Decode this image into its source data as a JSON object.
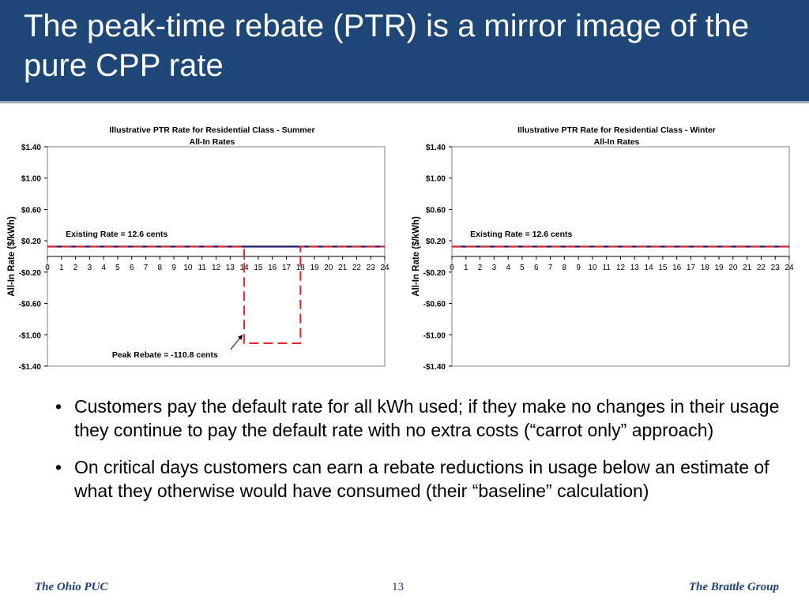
{
  "slide": {
    "title": "The peak-time rebate (PTR) is a mirror image of the pure CPP rate",
    "accent_color": "#1e4676",
    "bullets": [
      "Customers pay the default rate for all kWh used; if they make no changes in their usage they continue to pay the default rate with no extra costs (“carrot only” approach)",
      "On critical days customers can earn a rebate reductions in usage below an estimate of what they otherwise would have consumed (their “baseline” calculation)"
    ],
    "bullet_glyph": "•",
    "footer": {
      "left": "The Ohio PUC",
      "page": "13",
      "right": "The Brattle Group"
    }
  },
  "chart_data": [
    {
      "type": "line",
      "title": "Illustrative PTR Rate for Residential Class - Summer",
      "subtitle": "All-In Rates",
      "xlabel": "",
      "ylabel": "All-In Rate ($/kWh)",
      "x_ticks": [
        "0",
        "1",
        "2",
        "3",
        "4",
        "5",
        "6",
        "7",
        "8",
        "9",
        "10",
        "11",
        "12",
        "13",
        "14",
        "15",
        "16",
        "17",
        "18",
        "19",
        "20",
        "21",
        "22",
        "23",
        "24"
      ],
      "y_ticks": [
        "$1.40",
        "$1.00",
        "$0.60",
        "$0.20",
        "-$0.20",
        "-$0.60",
        "-$1.00",
        "-$1.40"
      ],
      "y_tick_values": [
        1.4,
        1.0,
        0.6,
        0.2,
        -0.2,
        -0.6,
        -1.0,
        -1.4
      ],
      "xlim": [
        0,
        24
      ],
      "ylim": [
        -1.4,
        1.4
      ],
      "grid": false,
      "series": [
        {
          "style": "solid",
          "color": "#1a1a6e",
          "x": [
            0,
            24
          ],
          "y": [
            0.126,
            0.126
          ]
        },
        {
          "style": "dashed",
          "color": "#e8262a",
          "x": [
            0,
            14,
            14,
            18,
            18,
            24
          ],
          "y": [
            0.126,
            0.126,
            -1.108,
            -1.108,
            0.126,
            0.126
          ]
        }
      ],
      "annotations": [
        {
          "text": "Existing Rate = 12.6 cents",
          "x": 1.3,
          "y": 0.25
        },
        {
          "text": "Peak Rebate = -110.8 cents",
          "x": 4.6,
          "y": -1.29,
          "arrow_to": [
            14,
            -0.98
          ]
        }
      ]
    },
    {
      "type": "line",
      "title": "Illustrative PTR Rate for Residential Class - Winter",
      "subtitle": "All-In Rates",
      "xlabel": "",
      "ylabel": "All-In Rate ($/kWh)",
      "x_ticks": [
        "0",
        "1",
        "2",
        "3",
        "4",
        "5",
        "6",
        "7",
        "8",
        "9",
        "10",
        "11",
        "12",
        "13",
        "14",
        "15",
        "16",
        "17",
        "18",
        "19",
        "20",
        "21",
        "22",
        "23",
        "24"
      ],
      "y_ticks": [
        "$1.40",
        "$1.00",
        "$0.60",
        "$0.20",
        "-$0.20",
        "-$0.60",
        "-$1.00",
        "-$1.40"
      ],
      "y_tick_values": [
        1.4,
        1.0,
        0.6,
        0.2,
        -0.2,
        -0.6,
        -1.0,
        -1.4
      ],
      "xlim": [
        0,
        24
      ],
      "ylim": [
        -1.4,
        1.4
      ],
      "grid": false,
      "series": [
        {
          "style": "solid",
          "color": "#1a1a6e",
          "x": [
            0,
            24
          ],
          "y": [
            0.126,
            0.126
          ]
        },
        {
          "style": "dashed",
          "color": "#e8262a",
          "x": [
            0,
            24
          ],
          "y": [
            0.126,
            0.126
          ]
        }
      ],
      "annotations": [
        {
          "text": "Existing Rate = 12.6 cents",
          "x": 1.3,
          "y": 0.25
        }
      ]
    }
  ]
}
